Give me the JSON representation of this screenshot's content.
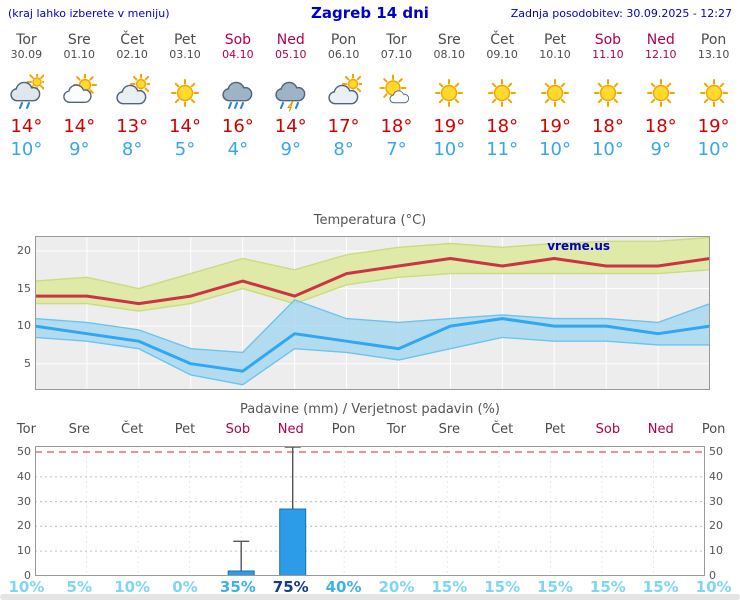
{
  "header": {
    "menu_hint": "(kraj lahko izberete v meniju)",
    "title": "Zagreb 14 dni",
    "last_update": "Zadnja posodobitev: 30.09.2025 - 12:27"
  },
  "colors": {
    "link_blue": "#0000cc",
    "day_text": "#4d4d4d",
    "weekend_text": "#b0004e",
    "tmax_text": "#d40000",
    "tmin_text": "#38a6e8",
    "chart_title": "#555555",
    "temp_plot_bg": "#ededed",
    "tmax_line": "#cc3344",
    "tmax_band": "#dfeaa8",
    "tmax_band_edge": "#c9dc7e",
    "tmin_line": "#2fa7f2",
    "tmin_band": "#a5d7f0",
    "tmin_band_edge": "#6cc4ee",
    "bar_fill": "#2d9ce8",
    "bar_edge": "#1272b8",
    "whisker": "#555555",
    "limit_line_red": "#e05050",
    "watermark_blue": "#0000bb"
  },
  "days": [
    {
      "name": "Tor",
      "date": "30.09",
      "weekend": false,
      "icon": "showers",
      "tmax": "14°",
      "tmin": "10°"
    },
    {
      "name": "Sre",
      "date": "01.10",
      "weekend": false,
      "icon": "partly-sunny",
      "tmax": "14°",
      "tmin": "9°"
    },
    {
      "name": "Čet",
      "date": "02.10",
      "weekend": false,
      "icon": "mostly-cloudy",
      "tmax": "13°",
      "tmin": "8°"
    },
    {
      "name": "Pet",
      "date": "03.10",
      "weekend": false,
      "icon": "sunny",
      "tmax": "14°",
      "tmin": "5°"
    },
    {
      "name": "Sob",
      "date": "04.10",
      "weekend": true,
      "icon": "rain",
      "tmax": "16°",
      "tmin": "4°"
    },
    {
      "name": "Ned",
      "date": "05.10",
      "weekend": true,
      "icon": "thunder-rain",
      "tmax": "14°",
      "tmin": "9°"
    },
    {
      "name": "Pon",
      "date": "06.10",
      "weekend": false,
      "icon": "mostly-cloudy",
      "tmax": "17°",
      "tmin": "8°"
    },
    {
      "name": "Tor",
      "date": "07.10",
      "weekend": false,
      "icon": "mostly-sunny",
      "tmax": "18°",
      "tmin": "7°"
    },
    {
      "name": "Sre",
      "date": "08.10",
      "weekend": false,
      "icon": "sunny",
      "tmax": "19°",
      "tmin": "10°"
    },
    {
      "name": "Čet",
      "date": "09.10",
      "weekend": false,
      "icon": "sunny",
      "tmax": "18°",
      "tmin": "11°"
    },
    {
      "name": "Pet",
      "date": "10.10",
      "weekend": false,
      "icon": "sunny",
      "tmax": "19°",
      "tmin": "10°"
    },
    {
      "name": "Sob",
      "date": "11.10",
      "weekend": true,
      "icon": "sunny",
      "tmax": "18°",
      "tmin": "10°"
    },
    {
      "name": "Ned",
      "date": "12.10",
      "weekend": true,
      "icon": "sunny",
      "tmax": "18°",
      "tmin": "9°"
    },
    {
      "name": "Pon",
      "date": "13.10",
      "weekend": false,
      "icon": "sunny",
      "tmax": "19°",
      "tmin": "10°"
    }
  ],
  "chart_data": [
    {
      "type": "line",
      "title": "Temperatura (°C)",
      "watermark": "vreme.us",
      "categories": [
        "Tor 30.09",
        "Sre 01.10",
        "Čet 02.10",
        "Pet 03.10",
        "Sob 04.10",
        "Ned 05.10",
        "Pon 06.10",
        "Tor 07.10",
        "Sre 08.10",
        "Čet 09.10",
        "Pet 10.10",
        "Sob 11.10",
        "Ned 12.10",
        "Pon 13.10"
      ],
      "ylim": [
        1.5,
        22
      ],
      "yticks": [
        5,
        10,
        15,
        20
      ],
      "grid": true,
      "series": [
        {
          "name": "max temperature",
          "color": "#cc3344",
          "values": [
            14,
            14,
            13,
            14,
            16,
            14,
            17,
            18,
            19,
            18,
            19,
            18,
            18,
            19
          ]
        },
        {
          "name": "min temperature",
          "color": "#2fa7f2",
          "values": [
            10,
            9,
            8,
            5,
            4,
            9,
            8,
            7,
            10,
            11,
            10,
            10,
            9,
            10
          ]
        },
        {
          "name": "max band upper",
          "color": "#dfeaa8",
          "values": [
            16,
            16.5,
            15,
            17,
            19,
            17.5,
            19.5,
            20.5,
            21,
            20.5,
            21,
            21.3,
            21.3,
            21.8
          ]
        },
        {
          "name": "max band lower",
          "color": "#dfeaa8",
          "values": [
            13,
            13,
            12,
            13,
            15,
            13,
            15.5,
            16.5,
            17,
            17,
            17,
            17,
            17,
            17.5
          ]
        },
        {
          "name": "min band upper",
          "color": "#a5d7f0",
          "values": [
            11,
            10.5,
            9.5,
            7,
            6.5,
            13.5,
            11,
            10.5,
            11,
            11.5,
            11,
            11,
            10.5,
            13
          ]
        },
        {
          "name": "min band lower",
          "color": "#a5d7f0",
          "values": [
            8.5,
            8,
            7,
            3.5,
            2.2,
            7,
            6.5,
            5.5,
            7,
            8.5,
            8,
            8,
            7.5,
            7.5
          ]
        }
      ]
    },
    {
      "type": "bar",
      "title": "Padavine (mm) / Verjetnost padavin (%)",
      "categories": [
        "Tor",
        "Sre",
        "Čet",
        "Pet",
        "Sob",
        "Ned",
        "Pon",
        "Tor",
        "Sre",
        "Čet",
        "Pet",
        "Sob",
        "Ned",
        "Pon"
      ],
      "values": [
        0,
        0,
        0,
        0,
        2,
        27,
        0,
        0,
        0,
        0,
        0,
        0,
        0,
        0
      ],
      "whisker_max": [
        null,
        null,
        null,
        null,
        14,
        52,
        null,
        null,
        null,
        null,
        null,
        null,
        null,
        null
      ],
      "ylim": [
        0,
        52.4
      ],
      "yticks": [
        0,
        10,
        20,
        30,
        40,
        50
      ],
      "probabilities": [
        {
          "text": "10%",
          "color": "#7dd6f5",
          "bold": false
        },
        {
          "text": "5%",
          "color": "#7dd6f5",
          "bold": false
        },
        {
          "text": "10%",
          "color": "#7dd6f5",
          "bold": false
        },
        {
          "text": "0%",
          "color": "#7dd6f5",
          "bold": false
        },
        {
          "text": "35%",
          "color": "#3fb0e8",
          "bold": false
        },
        {
          "text": "75%",
          "color": "#123c8e",
          "bold": true
        },
        {
          "text": "40%",
          "color": "#3fb0e8",
          "bold": false
        },
        {
          "text": "20%",
          "color": "#7dd6f5",
          "bold": false
        },
        {
          "text": "15%",
          "color": "#7dd6f5",
          "bold": false
        },
        {
          "text": "15%",
          "color": "#7dd6f5",
          "bold": false
        },
        {
          "text": "15%",
          "color": "#7dd6f5",
          "bold": false
        },
        {
          "text": "15%",
          "color": "#7dd6f5",
          "bold": false
        },
        {
          "text": "15%",
          "color": "#7dd6f5",
          "bold": false
        },
        {
          "text": "10%",
          "color": "#7dd6f5",
          "bold": false
        }
      ]
    }
  ]
}
